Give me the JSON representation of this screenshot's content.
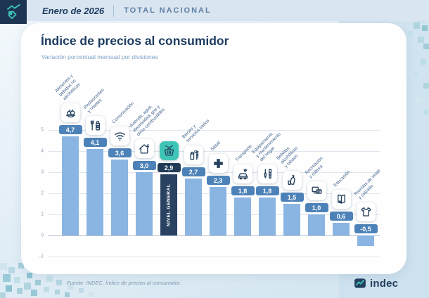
{
  "header": {
    "period": "Enero de 2026",
    "scope": "TOTAL NACIONAL"
  },
  "title": "Índice de precios al consumidor",
  "subtitle": "Variación porcentual mensual por divisiones",
  "footer": {
    "source": "Fuente: INDEC, Índice de precios al consumidor.",
    "logo_text": "indec"
  },
  "colors": {
    "navy": "#1d3c60",
    "teal_accent": "#3ec5b6",
    "bar": "#8ab5e2",
    "highlight_bar": "#2a4261",
    "badge": "#4d82b8",
    "highlight_badge": "#223c58"
  },
  "chart_data": {
    "type": "bar",
    "title": "Índice de precios al consumidor",
    "subtitle": "Variación porcentual mensual por divisiones",
    "unit": "%",
    "ylim": [
      -1,
      5
    ],
    "yticks": [
      5,
      4,
      3,
      2,
      1,
      0,
      -1
    ],
    "grid": true,
    "legend": "none",
    "categories": [
      "Alimentos y bebidas no alcohólicas",
      "Restaurantes y hoteles",
      "Comunicación",
      "Vivienda, agua, electricidad, gas y otros combustibles",
      "Nivel general",
      "Bienes y servicios varios",
      "Salud",
      "Transporte",
      "Equipamiento y mantenimiento del hogar",
      "Bebidas alcohólicas y tabaco",
      "Recreación y cultura",
      "Educación",
      "Prendas de vestir y calzado"
    ],
    "values": [
      4.7,
      4.1,
      3.6,
      3.0,
      2.9,
      2.7,
      2.3,
      1.8,
      1.8,
      1.5,
      1.0,
      0.6,
      -0.5
    ],
    "value_labels": [
      "4,7",
      "4,1",
      "3,6",
      "3,0",
      "2,9",
      "2,7",
      "2,3",
      "1,8",
      "1,8",
      "1,5",
      "1,0",
      "0,6",
      "-0,5"
    ],
    "highlight_index": 4,
    "highlight_label": "NIVEL GENERAL"
  },
  "bars": [
    {
      "slug": "alimentos",
      "label": "Alimentos y\nbebidas no\nalcohólicas",
      "icon": "food-icon",
      "highlight": false
    },
    {
      "slug": "restaurantes",
      "label": "Restaurantes\ny hoteles",
      "icon": "cutlery-icon",
      "highlight": false
    },
    {
      "slug": "comunicacion",
      "label": "Comunicación",
      "icon": "wifi-icon",
      "highlight": false
    },
    {
      "slug": "vivienda",
      "label": "Vivienda, agua,\nelectricidad, gas y\notros combustibles",
      "icon": "house-energy-icon",
      "highlight": false
    },
    {
      "slug": "nivel-general",
      "label": "",
      "icon": "basket-icon",
      "highlight": true
    },
    {
      "slug": "bienes-servicios",
      "label": "Bienes y\nservicios varios",
      "icon": "spray-comb-icon",
      "highlight": false
    },
    {
      "slug": "salud",
      "label": "Salud",
      "icon": "health-cross-icon",
      "highlight": false
    },
    {
      "slug": "transporte",
      "label": "Transporte",
      "icon": "car-wrench-icon",
      "highlight": false
    },
    {
      "slug": "equipamiento-hogar",
      "label": "Equipamiento\ny mantenimiento\ndel hogar",
      "icon": "tools-icon",
      "highlight": false
    },
    {
      "slug": "bebidas-tabaco",
      "label": "Bebidas\nalcohólicas\ny tabaco",
      "icon": "bottle-icon",
      "highlight": false
    },
    {
      "slug": "recreacion",
      "label": "Recreación\ny cultura",
      "icon": "media-icon",
      "highlight": false
    },
    {
      "slug": "educacion",
      "label": "Educación",
      "icon": "book-icon",
      "highlight": false
    },
    {
      "slug": "prendas-vestir",
      "label": "Prendas de vestir\ny calzado",
      "icon": "tshirt-icon",
      "highlight": false
    }
  ]
}
